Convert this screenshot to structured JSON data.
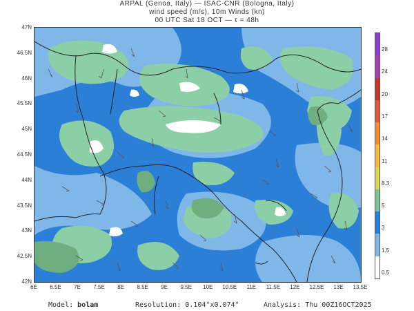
{
  "header": {
    "line1": "ARPAL (Genoa, Italy)  —  ISAC-CNR (Bologna, Italy)",
    "line2": "wind speed (m/s), 10m Winds (kn)",
    "line3": "00 UTC Sat 18 OCT  —  τ = 48h"
  },
  "axes": {
    "lat_labels": [
      "47N",
      "46.5N",
      "46N",
      "45.5N",
      "45N",
      "44.5N",
      "44N",
      "43.5N",
      "43N",
      "42.5N",
      "42N"
    ],
    "lon_labels": [
      "6E",
      "6.5E",
      "7E",
      "7.5E",
      "8E",
      "8.5E",
      "9E",
      "9.5E",
      "10E",
      "10.5E",
      "11E",
      "11.5E",
      "12E",
      "12.5E",
      "13E",
      "13.5E"
    ],
    "lat_range": [
      42,
      47
    ],
    "lon_range": [
      6,
      13.5
    ]
  },
  "colorbar": {
    "labels": [
      "28",
      "24",
      "20",
      "17",
      "14",
      "11",
      "8.3",
      "5",
      "3",
      "1.5",
      "0.5"
    ],
    "colors": [
      "#8a3fd1",
      "#a33fb0",
      "#c0392b",
      "#e05a3a",
      "#f08c3a",
      "#f4b942",
      "#d8d55a",
      "#7cc79a",
      "#2b7fd6",
      "#7fb7e8",
      "#ffffff"
    ]
  },
  "map_colors": {
    "sea_base": "#2b7fd6",
    "low": "#7fb7e8",
    "mid": "#8ccfa6",
    "high": "#6fae7e",
    "calm": "#ffffff",
    "border": "#222222"
  },
  "footer": {
    "model_label": "Model:",
    "model_value": "bolam",
    "resolution_label": "Resolution:",
    "resolution_value": "0.104°x0.074°",
    "analysis_label": "Analysis:",
    "analysis_value": "Thu 00Z16OCT2025"
  }
}
